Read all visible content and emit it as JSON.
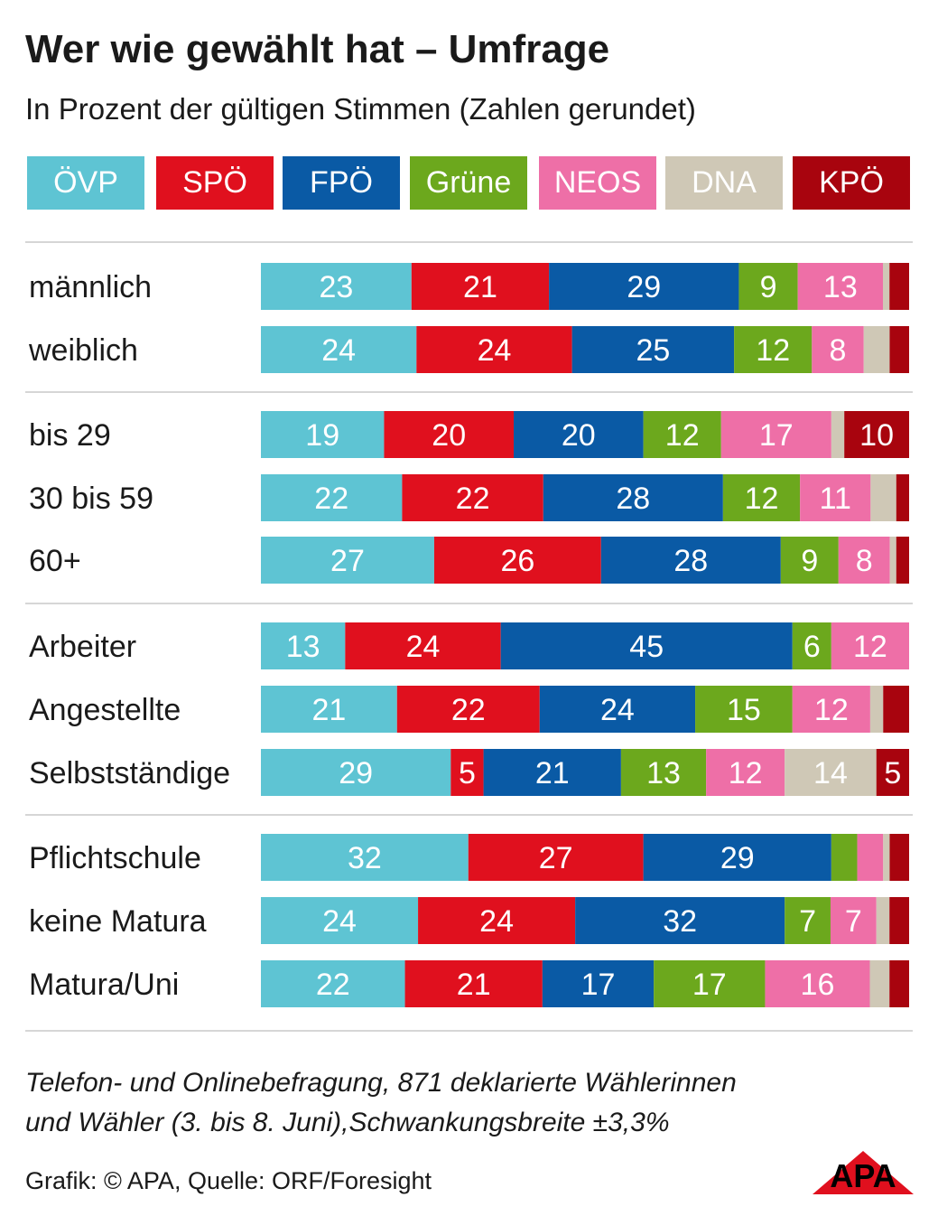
{
  "title": "Wer wie gewählt hat – Umfrage",
  "subtitle": "In Prozent der gültigen Stimmen (Zahlen gerundet)",
  "footnote_line1": "Telefon- und Onlinebefragung, 871 deklarierte Wählerinnen",
  "footnote_line2": "und Wähler (3. bis 8. Juni),Schwankungsbreite ±3,3%",
  "source": "Grafik: © APA, Quelle: ORF/Foresight",
  "logo_text": "APA",
  "chart_data": {
    "type": "bar",
    "stacked": true,
    "orientation": "horizontal",
    "title": "Wer wie gewählt hat – Umfrage",
    "subtitle": "In Prozent der gültigen Stimmen (Zahlen gerundet)",
    "legend_position": "top",
    "xlim": [
      0,
      100
    ],
    "groups": [
      {
        "rows": [
          0,
          1
        ]
      },
      {
        "rows": [
          2,
          3,
          4
        ]
      },
      {
        "rows": [
          5,
          6,
          7
        ]
      },
      {
        "rows": [
          8,
          9,
          10
        ]
      }
    ],
    "categories": [
      "männlich",
      "weiblich",
      "bis 29",
      "30 bis 59",
      "60+",
      "Arbeiter",
      "Angestellte",
      "Selbstständige",
      "Pflichtschule",
      "keine Matura",
      "Matura/Uni"
    ],
    "series": [
      {
        "name": "ÖVP",
        "color": "#5ec4d3",
        "values": [
          23,
          24,
          19,
          22,
          27,
          13,
          21,
          29,
          32,
          24,
          22
        ],
        "labels": [
          "23",
          "24",
          "19",
          "22",
          "27",
          "13",
          "21",
          "29",
          "32",
          "24",
          "22"
        ]
      },
      {
        "name": "SPÖ",
        "color": "#e0101e",
        "values": [
          21,
          24,
          20,
          22,
          26,
          24,
          22,
          5,
          27,
          24,
          21
        ],
        "labels": [
          "21",
          "24",
          "20",
          "22",
          "26",
          "24",
          "22",
          "5",
          "27",
          "24",
          "21"
        ]
      },
      {
        "name": "FPÖ",
        "color": "#0a5aa5",
        "values": [
          29,
          25,
          20,
          28,
          28,
          45,
          24,
          21,
          29,
          32,
          17
        ],
        "labels": [
          "29",
          "25",
          "20",
          "28",
          "28",
          "45",
          "24",
          "21",
          "29",
          "32",
          "17"
        ]
      },
      {
        "name": "Grüne",
        "color": "#6ca81d",
        "values": [
          9,
          12,
          12,
          12,
          9,
          6,
          15,
          13,
          4,
          7,
          17
        ],
        "labels": [
          "9",
          "12",
          "12",
          "12",
          "9",
          "6",
          "15",
          "13",
          "",
          "7",
          "17"
        ]
      },
      {
        "name": "NEOS",
        "color": "#ee6fa7",
        "values": [
          13,
          8,
          17,
          11,
          8,
          12,
          12,
          12,
          4,
          7,
          16
        ],
        "labels": [
          "13",
          "8",
          "17",
          "11",
          "8",
          "12",
          "12",
          "12",
          "",
          "7",
          "16"
        ]
      },
      {
        "name": "DNA",
        "color": "#cfc8b6",
        "values": [
          1,
          4,
          2,
          4,
          1,
          0,
          2,
          14,
          1,
          2,
          3
        ],
        "labels": [
          "",
          "",
          "",
          "",
          "",
          "",
          "",
          "14",
          "",
          "",
          ""
        ]
      },
      {
        "name": "KPÖ",
        "color": "#a8040e",
        "values": [
          3,
          3,
          10,
          2,
          2,
          0,
          4,
          5,
          3,
          3,
          3
        ],
        "labels": [
          "",
          "",
          "10",
          "",
          "",
          "",
          "",
          "5",
          "",
          "",
          ""
        ]
      }
    ]
  }
}
